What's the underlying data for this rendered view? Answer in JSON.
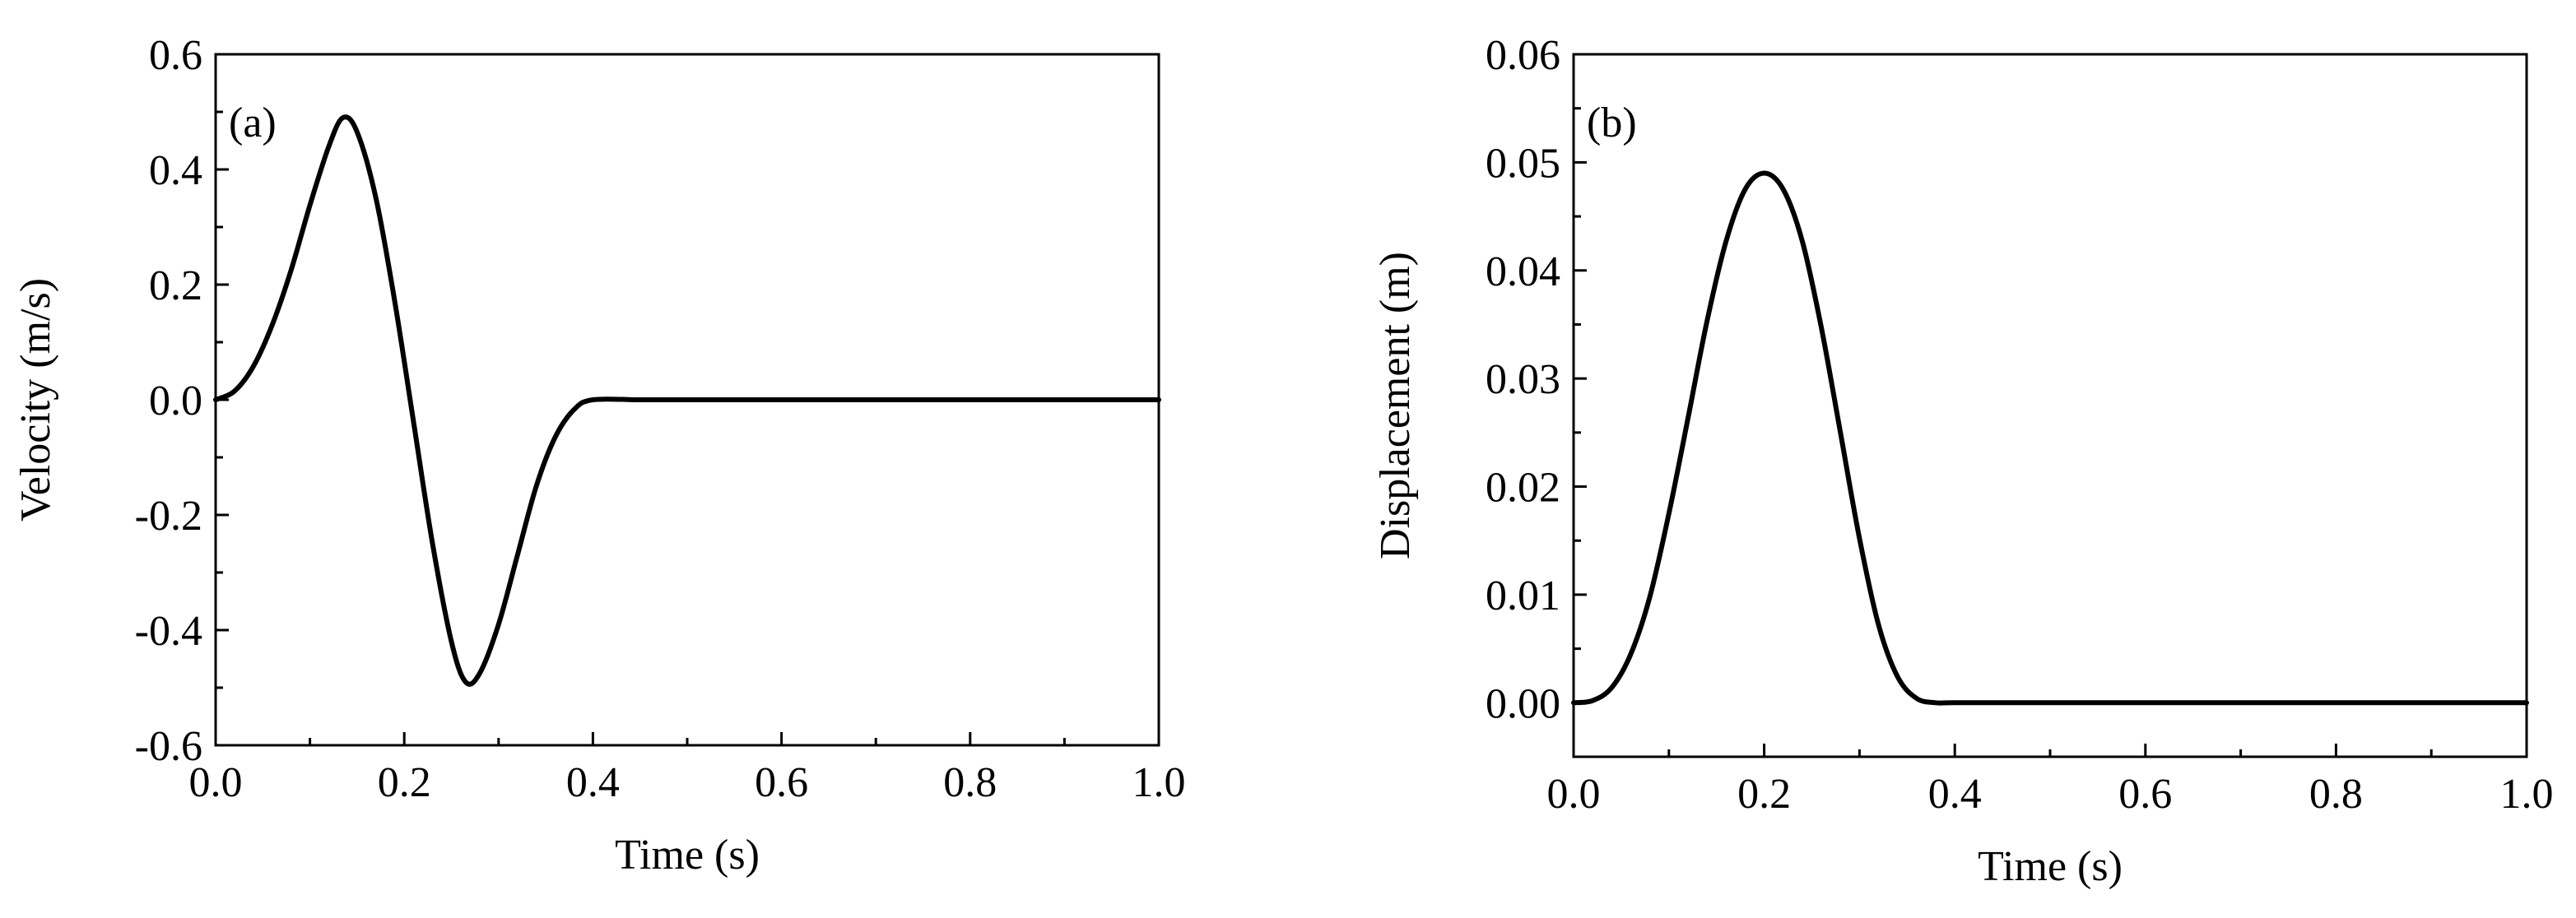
{
  "chart_data": [
    {
      "type": "line",
      "panel_label": "(a)",
      "xlabel": "Time (s)",
      "ylabel": "Velocity (m/s)",
      "xlim": [
        0.0,
        1.0
      ],
      "ylim": [
        -0.6,
        0.6
      ],
      "x_ticks": [
        "0.0",
        "0.2",
        "0.4",
        "0.6",
        "0.8",
        "1.0"
      ],
      "y_ticks": [
        "-0.6",
        "-0.4",
        "-0.2",
        "0.0",
        "0.2",
        "0.4",
        "0.6"
      ],
      "grid": false,
      "series": [
        {
          "color": "#000000",
          "x": [
            0.0,
            0.02,
            0.04,
            0.06,
            0.08,
            0.1,
            0.12,
            0.135,
            0.15,
            0.17,
            0.19,
            0.21,
            0.23,
            0.25,
            0.265,
            0.28,
            0.3,
            0.32,
            0.34,
            0.36,
            0.38,
            0.4,
            0.45,
            0.5,
            0.6,
            0.7,
            0.8,
            0.9,
            1.0
          ],
          "y": [
            0.0,
            0.015,
            0.058,
            0.13,
            0.225,
            0.338,
            0.44,
            0.49,
            0.465,
            0.35,
            0.17,
            -0.04,
            -0.25,
            -0.42,
            -0.49,
            -0.475,
            -0.39,
            -0.27,
            -0.15,
            -0.065,
            -0.017,
            0.0,
            0.0,
            0.0,
            0.0,
            0.0,
            0.0,
            0.0,
            0.0
          ]
        }
      ]
    },
    {
      "type": "line",
      "panel_label": "(b)",
      "xlabel": "Time (s)",
      "ylabel": "Displacement (m)",
      "xlim": [
        0.0,
        1.0
      ],
      "ylim": [
        -0.005,
        0.06
      ],
      "x_ticks": [
        "0.0",
        "0.2",
        "0.4",
        "0.6",
        "0.8",
        "1.0"
      ],
      "y_ticks": [
        "0.00",
        "0.01",
        "0.02",
        "0.03",
        "0.04",
        "0.05",
        "0.06"
      ],
      "grid": false,
      "series": [
        {
          "color": "#000000",
          "x": [
            0.0,
            0.02,
            0.04,
            0.06,
            0.08,
            0.1,
            0.12,
            0.14,
            0.16,
            0.18,
            0.2,
            0.22,
            0.24,
            0.26,
            0.28,
            0.3,
            0.32,
            0.34,
            0.36,
            0.38,
            0.4,
            0.5,
            0.6,
            0.7,
            0.8,
            0.9,
            1.0
          ],
          "y": [
            0.0,
            0.0002,
            0.0014,
            0.0045,
            0.0098,
            0.0175,
            0.0263,
            0.0353,
            0.0427,
            0.0475,
            0.049,
            0.0475,
            0.0427,
            0.0347,
            0.025,
            0.0152,
            0.0072,
            0.0024,
            0.0004,
            0.0,
            0.0,
            0.0,
            0.0,
            0.0,
            0.0,
            0.0,
            0.0
          ]
        }
      ]
    }
  ]
}
